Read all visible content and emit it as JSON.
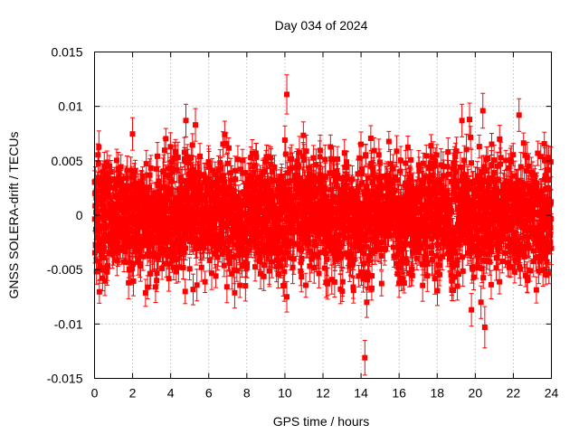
{
  "chart_data": {
    "type": "scatter",
    "title": "Day 034 of 2024",
    "xlabel": "GPS time / hours",
    "ylabel": "GNSS SOLERA-drift / TECUs",
    "xlim": [
      0,
      24
    ],
    "ylim": [
      -0.015,
      0.015
    ],
    "x_ticks": [
      0,
      2,
      4,
      6,
      8,
      10,
      12,
      14,
      16,
      18,
      20,
      22,
      24
    ],
    "x_tick_labels": [
      "0",
      "2",
      "4",
      "6",
      "8",
      "10",
      "12",
      "14",
      "16",
      "18",
      "20",
      "22",
      "24"
    ],
    "y_ticks": [
      -0.015,
      -0.01,
      -0.005,
      0,
      0.005,
      0.01,
      0.015
    ],
    "y_tick_labels": [
      "-0.015",
      "-0.01",
      "-0.005",
      "0",
      "0.005",
      "0.01",
      "0.015"
    ],
    "grid": true,
    "legend": "none",
    "series_color": "#ff0000",
    "marker": "square-with-errorbars",
    "noise_std": 0.0027,
    "typical_error": 0.0012,
    "n_points": 2880,
    "notable_points": [
      {
        "x": 10.1,
        "y": 0.0111,
        "err": 0.0018
      },
      {
        "x": 14.2,
        "y": -0.0131,
        "err": 0.0016
      },
      {
        "x": 20.5,
        "y": -0.0103,
        "err": 0.0019
      },
      {
        "x": 20.4,
        "y": 0.0096,
        "err": 0.0016
      },
      {
        "x": 22.3,
        "y": 0.0092,
        "err": 0.0015
      },
      {
        "x": 4.8,
        "y": 0.0087,
        "err": 0.0015
      },
      {
        "x": 5.3,
        "y": 0.0083,
        "err": 0.0015
      },
      {
        "x": 19.3,
        "y": 0.0087,
        "err": 0.0015
      },
      {
        "x": 19.7,
        "y": 0.0088,
        "err": 0.0015
      },
      {
        "x": 19.8,
        "y": -0.0087,
        "err": 0.0015
      },
      {
        "x": 20.3,
        "y": -0.008,
        "err": 0.0015
      },
      {
        "x": 10.0,
        "y": 0.0069,
        "err": 0.0013
      },
      {
        "x": 10.1,
        "y": -0.0075,
        "err": 0.0014
      },
      {
        "x": 14.3,
        "y": -0.008,
        "err": 0.0014
      },
      {
        "x": 0.2,
        "y": 0.0048,
        "err": 0.0012
      },
      {
        "x": 0.1,
        "y": -0.0042,
        "err": 0.0012
      }
    ]
  }
}
